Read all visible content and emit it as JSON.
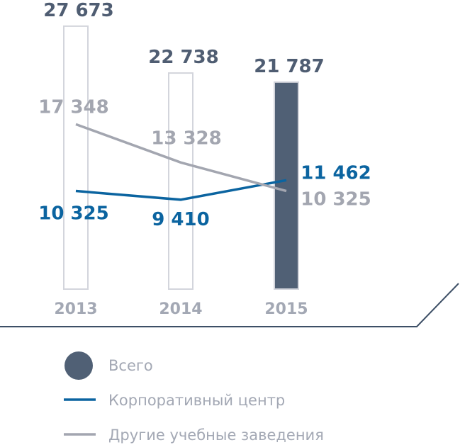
{
  "chart_data": {
    "type": "bar+line",
    "categories": [
      "2013",
      "2014",
      "2015"
    ],
    "bars": {
      "name": "Всего",
      "values": [
        27673,
        22738,
        21787
      ],
      "labels": [
        "27 673",
        "22 738",
        "21 787"
      ]
    },
    "series": [
      {
        "name": "Корпоративный центр",
        "values": [
          10325,
          9410,
          11462
        ],
        "labels": [
          "10 325",
          "9 410",
          "11 462"
        ],
        "color": "#0b64a0"
      },
      {
        "name": "Другие учебные заведения",
        "values": [
          17348,
          13328,
          10325
        ],
        "labels": [
          "17 348",
          "13 328",
          "10 325"
        ],
        "color": "#a3a6b0"
      }
    ],
    "highlight_category": "2015",
    "colors": {
      "bar_highlight": "#506075",
      "bar_outline": "#d3d5dc",
      "value_label": "#4f5d72",
      "axis": "#3d4f66",
      "year_label": "#a3a8b4"
    },
    "legend_placement": "bottom",
    "grid": false
  }
}
